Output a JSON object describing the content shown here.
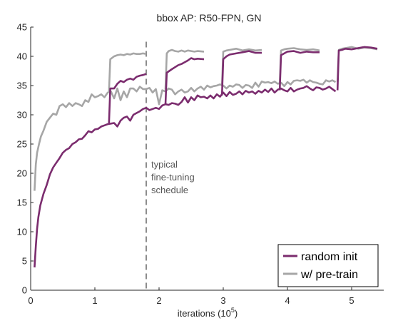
{
  "chart_data": {
    "type": "line",
    "title": "bbox AP: R50-FPN, GN",
    "xlabel": "iterations (10",
    "xlabel_sup": "5",
    "xlabel_end": ")",
    "ylabel": "",
    "xlim": [
      0,
      5.5
    ],
    "ylim": [
      0,
      45
    ],
    "xticks": [
      0,
      1,
      2,
      3,
      4,
      5
    ],
    "yticks": [
      0,
      5,
      10,
      15,
      20,
      25,
      30,
      35,
      40,
      45
    ],
    "grid": false,
    "legend_position": "bottom-right",
    "annotation": {
      "lines": [
        "typical",
        "fine-tuning",
        "schedule"
      ],
      "x": 1.8
    },
    "colors": {
      "random_init": "#7b2c6e",
      "pretrain": "#a6a6a6",
      "vline": "#8c8c8c",
      "axis": "#262626"
    },
    "series": [
      {
        "name": "random init",
        "color": "#7b2c6e",
        "segments": [
          {
            "x": [
              0.06,
              0.08,
              0.1,
              0.12,
              0.15,
              0.2,
              0.25,
              0.3,
              0.35,
              0.4,
              0.45,
              0.5,
              0.55,
              0.6,
              0.65,
              0.7,
              0.75,
              0.8,
              0.85,
              0.9,
              0.95,
              1.0,
              1.05,
              1.1,
              1.15,
              1.2,
              1.25,
              1.3,
              1.35,
              1.4,
              1.45,
              1.5,
              1.55,
              1.6,
              1.65,
              1.7,
              1.75,
              1.8,
              1.85,
              1.9,
              1.95,
              2.0,
              2.05,
              2.1,
              2.15,
              2.2,
              2.25,
              2.3,
              2.35,
              2.4,
              2.45,
              2.5,
              2.55,
              2.6,
              2.65,
              2.7,
              2.75,
              2.8,
              2.85,
              2.9,
              2.95,
              3.0,
              3.05,
              3.1,
              3.15,
              3.2,
              3.25,
              3.3,
              3.35,
              3.4,
              3.45,
              3.5,
              3.55,
              3.6,
              3.65,
              3.7,
              3.75,
              3.8,
              3.85,
              3.9,
              3.95,
              4.0,
              4.05,
              4.1,
              4.15,
              4.2,
              4.25,
              4.3,
              4.35,
              4.4,
              4.45,
              4.5,
              4.55,
              4.6,
              4.65,
              4.7,
              4.75
            ],
            "y": [
              3.9,
              7.5,
              10.5,
              12.5,
              14.5,
              16.5,
              18.0,
              19.8,
              21.0,
              21.8,
              22.6,
              23.5,
              24.0,
              24.3,
              25.0,
              25.3,
              25.8,
              25.9,
              26.5,
              27.2,
              27.0,
              27.5,
              27.6,
              28.0,
              28.2,
              28.4,
              28.5,
              28.6,
              28.0,
              29.0,
              29.5,
              29.7,
              29.0,
              30.0,
              30.3,
              30.6,
              31.0,
              31.2,
              30.8,
              31.0,
              31.2,
              31.0,
              31.6,
              31.8,
              31.7,
              32.0,
              31.9,
              31.7,
              32.2,
              33.0,
              32.1,
              33.0,
              32.5,
              33.3,
              33.0,
              33.1,
              32.8,
              33.3,
              32.8,
              33.5,
              33.1,
              33.8,
              33.2,
              33.9,
              33.4,
              33.6,
              34.0,
              33.5,
              34.1,
              33.8,
              34.0,
              33.6,
              34.1,
              33.8,
              34.3,
              33.9,
              34.5,
              33.8,
              34.3,
              34.5,
              34.2,
              34.0,
              34.6,
              34.0,
              34.3,
              34.5,
              34.6,
              34.9,
              34.5,
              34.2,
              34.7,
              34.6,
              34.3,
              34.5,
              34.8,
              34.4,
              34.0
            ]
          },
          {
            "x": [
              1.22,
              1.24,
              1.3,
              1.35,
              1.4,
              1.45,
              1.5,
              1.55,
              1.6,
              1.65,
              1.7,
              1.75,
              1.8
            ],
            "y": [
              28.6,
              34.5,
              34.5,
              35.3,
              35.8,
              35.6,
              36.0,
              36.2,
              36.0,
              36.5,
              36.7,
              36.8,
              37.0
            ]
          },
          {
            "x": [
              2.1,
              2.12,
              2.2,
              2.3,
              2.35,
              2.4,
              2.45,
              2.5,
              2.55,
              2.6,
              2.7
            ],
            "y": [
              31.8,
              37.2,
              37.8,
              38.5,
              38.7,
              39.0,
              39.3,
              39.7,
              39.5,
              39.6,
              39.5
            ]
          },
          {
            "x": [
              2.98,
              3.0,
              3.05,
              3.1,
              3.2,
              3.3,
              3.4,
              3.5,
              3.6
            ],
            "y": [
              33.3,
              39.5,
              40.0,
              40.3,
              40.5,
              40.7,
              40.9,
              40.6,
              40.6
            ]
          },
          {
            "x": [
              3.88,
              3.9,
              3.95,
              4.0,
              4.1,
              4.2,
              4.3,
              4.4,
              4.5
            ],
            "y": [
              34.2,
              40.2,
              40.5,
              40.8,
              40.9,
              40.6,
              40.8,
              40.7,
              40.7
            ]
          },
          {
            "x": [
              4.78,
              4.8,
              4.85,
              4.9,
              5.0,
              5.1,
              5.2,
              5.3,
              5.4
            ],
            "y": [
              34.2,
              41.0,
              41.1,
              41.3,
              41.2,
              41.4,
              41.6,
              41.5,
              41.3
            ]
          }
        ]
      },
      {
        "name": "w/ pre-train",
        "color": "#a6a6a6",
        "segments": [
          {
            "x": [
              0.06,
              0.08,
              0.1,
              0.13,
              0.16,
              0.2,
              0.25,
              0.3,
              0.35,
              0.4,
              0.45,
              0.5,
              0.55,
              0.6,
              0.65,
              0.7,
              0.75,
              0.8,
              0.85,
              0.9,
              0.95,
              1.0,
              1.05,
              1.1,
              1.15,
              1.2,
              1.25,
              1.3,
              1.35,
              1.4,
              1.45,
              1.5,
              1.55,
              1.6,
              1.65,
              1.7,
              1.75,
              1.8,
              1.85,
              1.9,
              1.95,
              2.0,
              2.05,
              2.1,
              2.15,
              2.2,
              2.25,
              2.3,
              2.35,
              2.4,
              2.45,
              2.5,
              2.55,
              2.6,
              2.65,
              2.7,
              2.75,
              2.8,
              2.85,
              2.9,
              2.95,
              3.0,
              3.05,
              3.1,
              3.15,
              3.2,
              3.25,
              3.3,
              3.35,
              3.4,
              3.45,
              3.5,
              3.55,
              3.6,
              3.65,
              3.7,
              3.75,
              3.8,
              3.85,
              3.9,
              3.95,
              4.0,
              4.05,
              4.1,
              4.15,
              4.2,
              4.25,
              4.3,
              4.35,
              4.4,
              4.45,
              4.5,
              4.55,
              4.6,
              4.65,
              4.7,
              4.75
            ],
            "y": [
              17.0,
              21.5,
              23.5,
              25.0,
              26.3,
              27.3,
              28.8,
              29.5,
              30.2,
              30.0,
              31.5,
              31.8,
              31.3,
              32.0,
              31.5,
              32.0,
              31.8,
              31.5,
              32.5,
              32.2,
              33.5,
              33.0,
              33.2,
              33.5,
              33.0,
              33.8,
              34.0,
              32.8,
              34.5,
              32.5,
              34.0,
              33.0,
              34.5,
              34.5,
              34.0,
              34.8,
              34.4,
              34.4,
              34.6,
              33.8,
              34.4,
              31.8,
              34.2,
              34.0,
              34.5,
              34.3,
              33.5,
              34.0,
              34.3,
              33.8,
              34.0,
              34.6,
              34.0,
              34.5,
              34.8,
              34.3,
              35.0,
              34.7,
              34.9,
              35.0,
              35.2,
              35.0,
              34.5,
              35.0,
              34.8,
              35.2,
              35.1,
              34.6,
              35.1,
              35.0,
              34.6,
              35.5,
              34.8,
              35.7,
              35.5,
              35.6,
              35.4,
              35.7,
              35.3,
              35.5,
              34.9,
              35.6,
              35.2,
              35.8,
              35.9,
              35.8,
              36.0,
              35.5,
              35.9,
              35.6,
              35.5,
              35.3,
              35.2,
              35.9,
              35.7,
              35.9,
              35.6
            ]
          },
          {
            "x": [
              1.22,
              1.24,
              1.3,
              1.35,
              1.4,
              1.45,
              1.5,
              1.55,
              1.6,
              1.65,
              1.7,
              1.75,
              1.8
            ],
            "y": [
              34.0,
              39.5,
              40.0,
              40.2,
              40.3,
              40.2,
              40.4,
              40.3,
              40.5,
              40.4,
              40.4,
              40.5,
              40.4
            ]
          },
          {
            "x": [
              2.1,
              2.12,
              2.15,
              2.2,
              2.25,
              2.3,
              2.35,
              2.4,
              2.45,
              2.5,
              2.55,
              2.6,
              2.7
            ],
            "y": [
              34.3,
              40.5,
              40.9,
              41.1,
              40.9,
              40.8,
              41.0,
              40.8,
              41.0,
              40.9,
              40.8,
              40.9,
              40.8
            ]
          },
          {
            "x": [
              2.98,
              3.0,
              3.05,
              3.1,
              3.2,
              3.3,
              3.4,
              3.5,
              3.6
            ],
            "y": [
              34.9,
              40.8,
              41.0,
              41.1,
              41.3,
              41.0,
              41.2,
              41.0,
              41.1
            ]
          },
          {
            "x": [
              3.88,
              3.9,
              3.95,
              4.0,
              4.1,
              4.2,
              4.3,
              4.4,
              4.5
            ],
            "y": [
              35.3,
              41.0,
              41.2,
              41.3,
              41.4,
              41.2,
              41.1,
              41.2,
              41.0
            ]
          },
          {
            "x": [
              4.78,
              4.8,
              4.85,
              4.9,
              5.0,
              5.1,
              5.2,
              5.3,
              5.4
            ],
            "y": [
              35.6,
              41.1,
              41.3,
              41.4,
              41.6,
              41.3,
              41.5,
              41.4,
              41.2
            ]
          }
        ]
      }
    ]
  }
}
